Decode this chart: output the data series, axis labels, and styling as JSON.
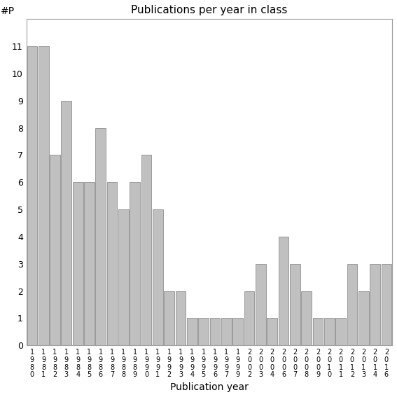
{
  "title": "Publications per year in class",
  "xlabel": "Publication year",
  "ylabel": "#P",
  "bar_color": "#c0c0c0",
  "edge_color": "#808080",
  "categories": [
    "1980",
    "1981",
    "1982",
    "1983",
    "1984",
    "1985",
    "1986",
    "1987",
    "1988",
    "1989",
    "1990",
    "1991",
    "1992",
    "1993",
    "1994",
    "1995",
    "1996",
    "1997",
    "1999",
    "2002",
    "2003",
    "2004",
    "2006",
    "2007",
    "2008",
    "2009",
    "2010",
    "2011",
    "2012",
    "2013",
    "2014",
    "2016"
  ],
  "values": [
    11,
    11,
    7,
    9,
    6,
    6,
    8,
    6,
    5,
    6,
    7,
    5,
    2,
    2,
    1,
    1,
    1,
    1,
    1,
    2,
    3,
    1,
    4,
    3,
    2,
    1,
    1,
    1,
    3,
    2,
    3,
    3
  ],
  "ylim": [
    0,
    12
  ],
  "yticks": [
    0,
    1,
    2,
    3,
    4,
    5,
    6,
    7,
    8,
    9,
    10,
    11
  ],
  "figsize": [
    5.67,
    5.67
  ],
  "dpi": 100
}
